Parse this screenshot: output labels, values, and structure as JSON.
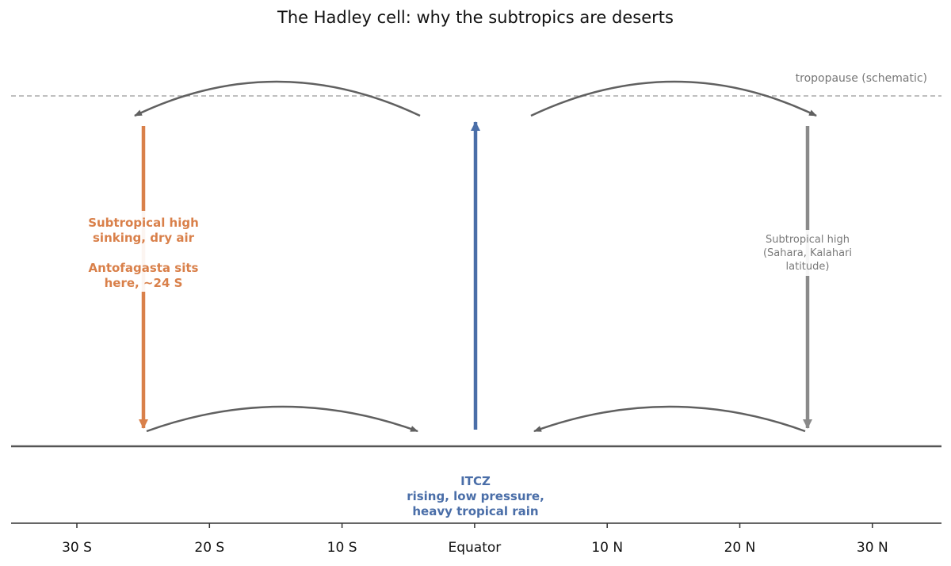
{
  "title": "The Hadley cell: why the subtropics are deserts",
  "tropopause_label": "tropopause (schematic)",
  "axis": {
    "ticks": [
      "30 S",
      "20 S",
      "10 S",
      "Equator",
      "10 N",
      "20 N",
      "30 N"
    ]
  },
  "annotations": {
    "south_high": {
      "line1": "Subtropical high",
      "line2": "sinking, dry air",
      "line3": "Antofagasta sits",
      "line4": "here, ~24 S"
    },
    "north_high": {
      "line1": "Subtropical high",
      "line2": "(Sahara, Kalahari",
      "line3": "latitude)"
    },
    "itcz": {
      "line1": "ITCZ",
      "line2": "rising, low pressure,",
      "line3": "heavy tropical rain"
    }
  },
  "colors": {
    "sinking_south": "#d9804a",
    "rising_equator": "#4a6ea8",
    "sinking_north": "#8a8a8a",
    "flow_arrows": "#606060",
    "ground": "#555555",
    "tropopause": "#aaaaaa"
  }
}
